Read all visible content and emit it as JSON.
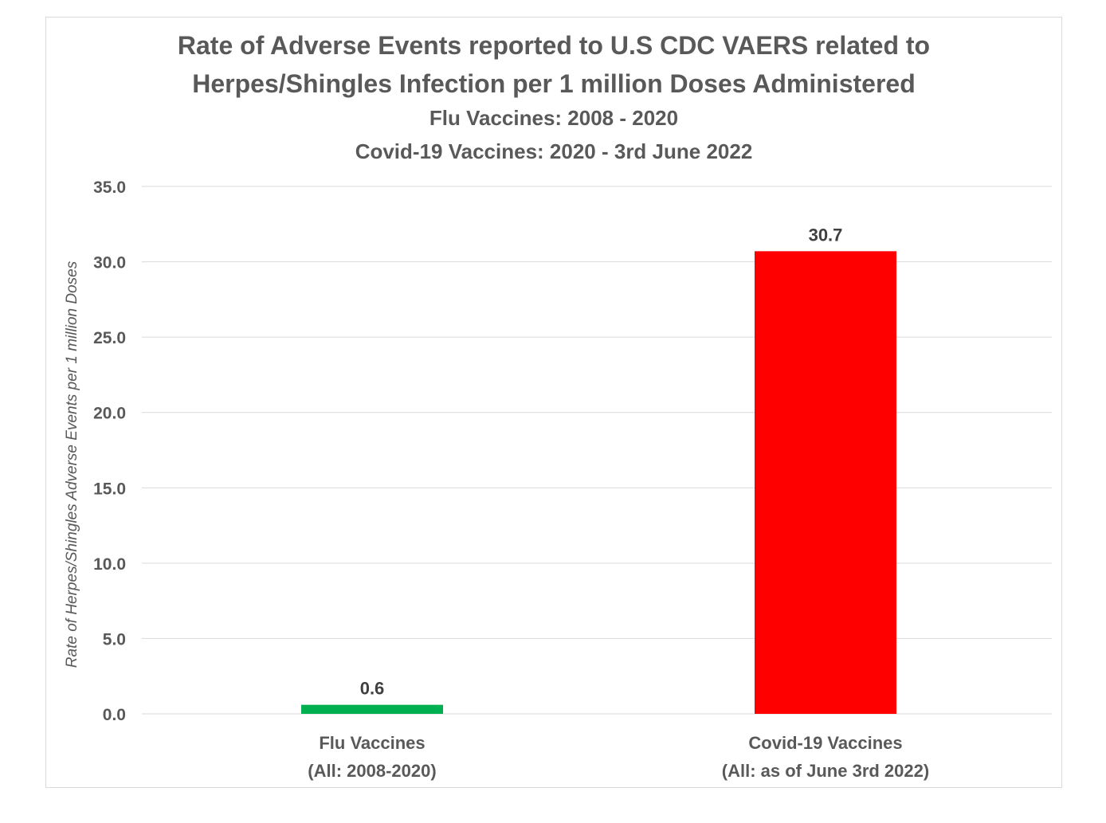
{
  "chart_data": {
    "type": "bar",
    "title_lines": [
      "Rate of Adverse Events reported to U.S CDC VAERS related to",
      "Herpes/Shingles Infection per 1 million Doses Administered"
    ],
    "subtitle_lines": [
      "Flu Vaccines: 2008 - 2020",
      "Covid-19 Vaccines: 2020 - 3rd June 2022"
    ],
    "ylabel": "Rate of Herpes/Shingles Adverse Events per 1 million Doses",
    "xlabel": "",
    "ylim": [
      0,
      35
    ],
    "yticks": [
      "0.0",
      "5.0",
      "10.0",
      "15.0",
      "20.0",
      "25.0",
      "30.0",
      "35.0"
    ],
    "grid": true,
    "legend": "none",
    "categories": [
      [
        "Flu Vaccines",
        "(All: 2008-2020)"
      ],
      [
        "Covid-19 Vaccines",
        "(All: as of June 3rd 2022)"
      ]
    ],
    "values": [
      0.6,
      30.7
    ],
    "data_labels": [
      "0.6",
      "30.7"
    ],
    "colors": [
      "#00b050",
      "#ff0000"
    ]
  },
  "colors": {
    "text": "#595959",
    "data_label": "#404040",
    "gridline": "#d9d9d9",
    "frame": "#d9d9d9"
  }
}
